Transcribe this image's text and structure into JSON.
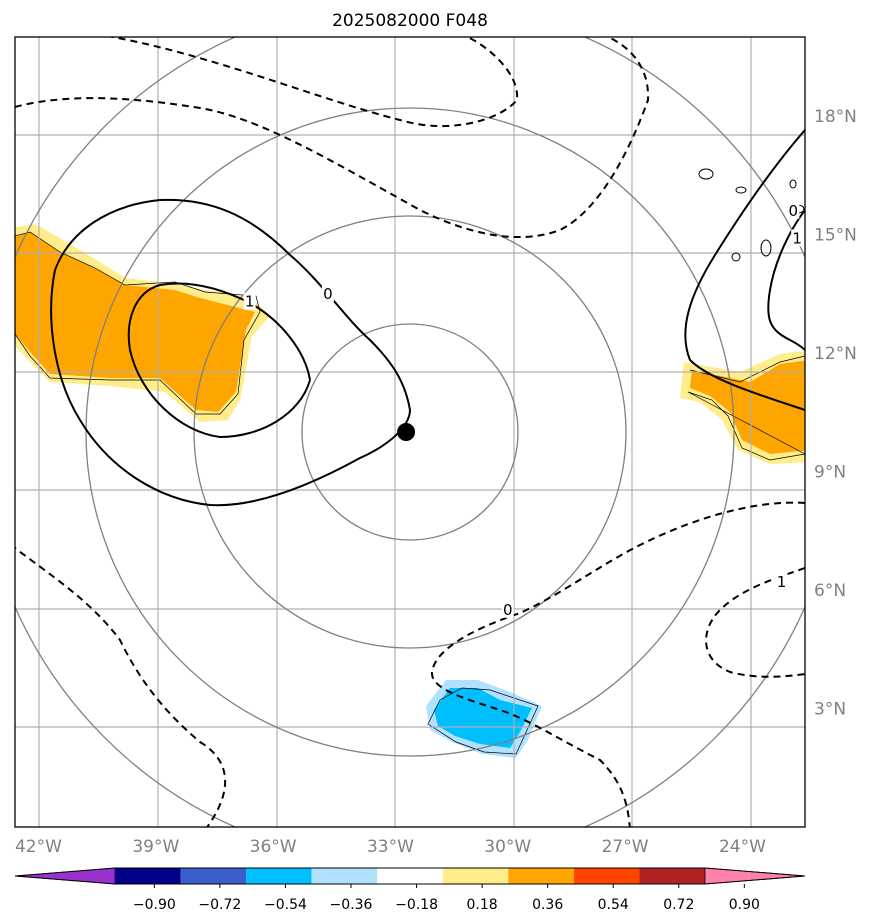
{
  "title": "2025082000 F048",
  "map": {
    "lon_range": [
      -42.6,
      -22.4
    ],
    "lat_range": [
      0.0,
      20.0
    ],
    "lon_ticks": [
      {
        "value": -42,
        "label": "42°W"
      },
      {
        "value": -39,
        "label": "39°W"
      },
      {
        "value": -36,
        "label": "36°W"
      },
      {
        "value": -33,
        "label": "33°W"
      },
      {
        "value": -30,
        "label": "30°W"
      },
      {
        "value": -27,
        "label": "27°W"
      },
      {
        "value": -24,
        "label": "24°W"
      }
    ],
    "lat_ticks": [
      {
        "value": 18,
        "label": "18°N"
      },
      {
        "value": 15,
        "label": "15°N"
      },
      {
        "value": 12,
        "label": "12°N"
      },
      {
        "value": 9,
        "label": "9°N"
      },
      {
        "value": 6,
        "label": "6°N"
      },
      {
        "value": 3,
        "label": "3°N"
      }
    ],
    "grid": true,
    "storm_center": {
      "lon": -32.6,
      "lat": 10.0
    },
    "range_ring_count": 4,
    "contour_labels": [
      {
        "text": "0",
        "lon": -34.6,
        "lat": 13.5
      },
      {
        "text": "1",
        "lon": -36.6,
        "lat": 13.3
      },
      {
        "text": "0",
        "lon": -30.0,
        "lat": 5.5
      },
      {
        "text": "1",
        "lon": -23.0,
        "lat": 6.2
      },
      {
        "text": "0",
        "lon": -22.7,
        "lat": 15.6
      },
      {
        "text": "1",
        "lon": -22.6,
        "lat": 14.9
      }
    ]
  },
  "colorbar": {
    "colors": [
      "#9932cc",
      "#00008b",
      "#3a5fcd",
      "#00bfff",
      "#b0e2ff",
      "#ffffff",
      "#ffec8b",
      "#ffa500",
      "#ff4500",
      "#b22222",
      "#ff82ab"
    ],
    "ticks": [
      "−0.90",
      "−0.72",
      "−0.54",
      "−0.36",
      "−0.18",
      "0.18",
      "0.36",
      "0.54",
      "0.72",
      "0.90"
    ]
  }
}
